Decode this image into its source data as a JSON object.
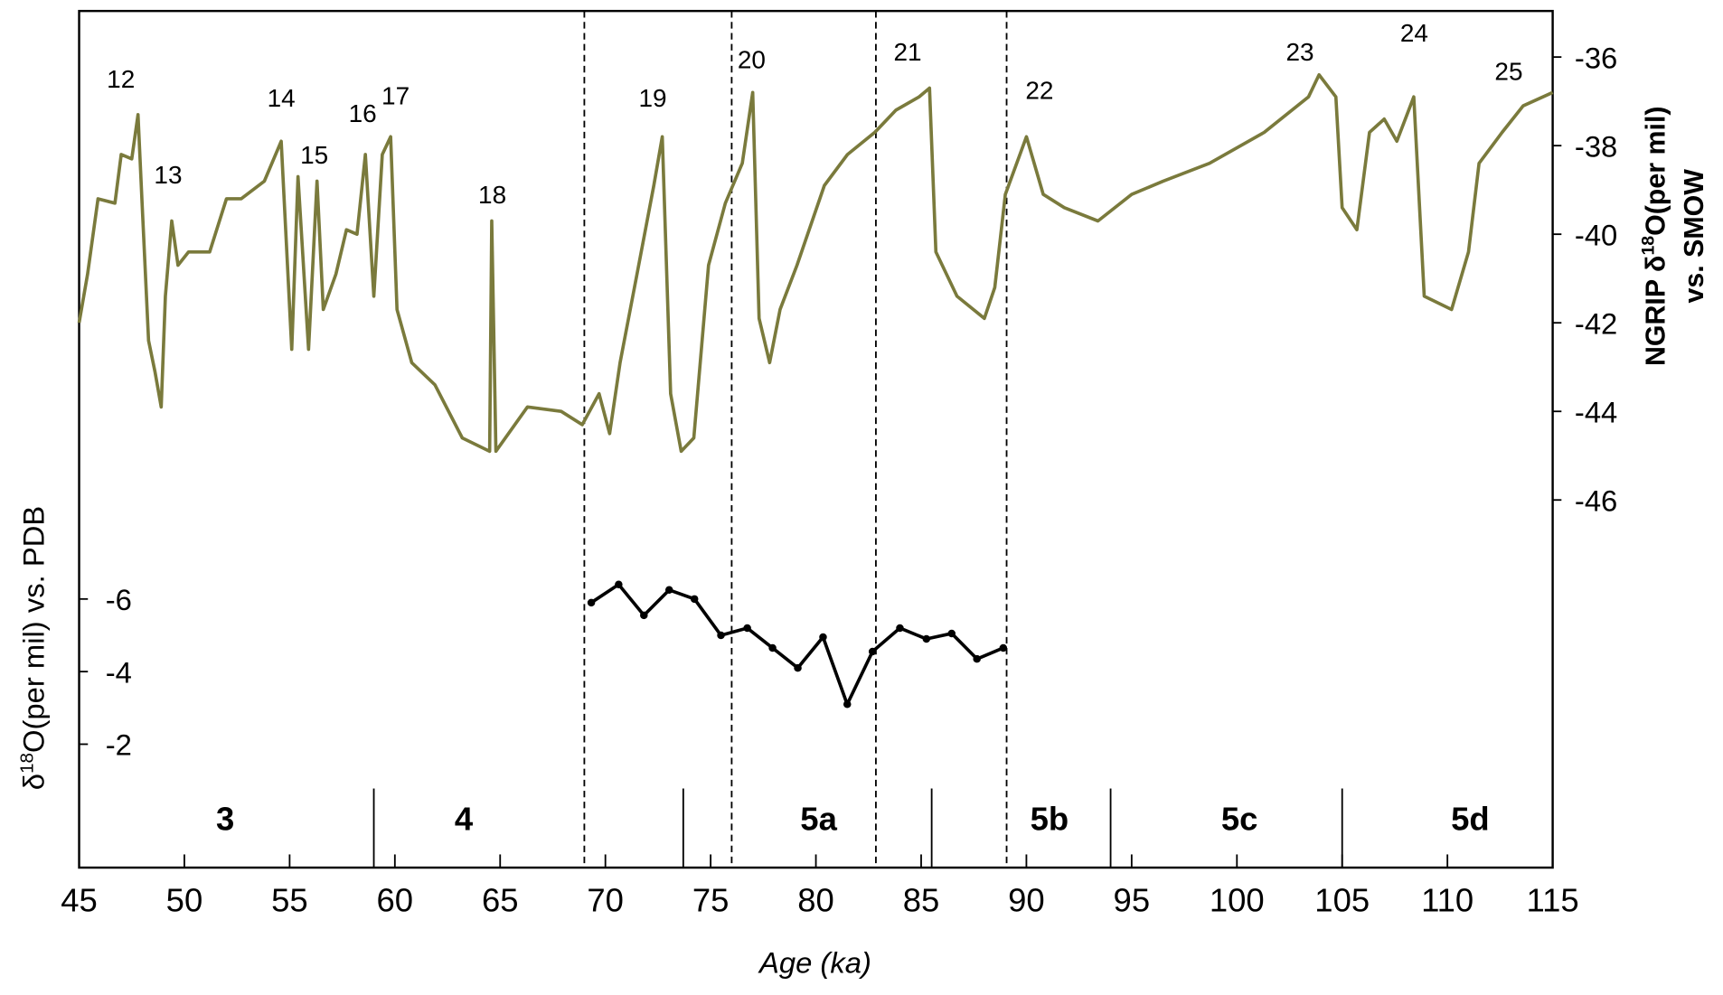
{
  "chart_data": {
    "type": "line",
    "xlabel": "Age (ka)",
    "ylabel_parts": [
      "δ",
      "18",
      "O(per mil) vs. PDB"
    ],
    "y2label_parts": [
      "NGRIP δ",
      "18",
      "O(per mil)"
    ],
    "y2label_line2": "vs. SMOW",
    "xlim": [
      45,
      115
    ],
    "xticks": [
      45,
      50,
      55,
      60,
      65,
      70,
      75,
      80,
      85,
      90,
      95,
      100,
      105,
      110,
      115
    ],
    "ylim": [
      1.4,
      -22.2
    ],
    "yticks": [
      -6,
      -4,
      -2
    ],
    "y2lim": [
      -54.3,
      -34.96
    ],
    "y2ticks": [
      -36,
      -38,
      -40,
      -42,
      -44,
      -46
    ],
    "series": [
      {
        "color": "#7a7a3c",
        "axis": "y2",
        "x": [
          45,
          45.4,
          45.9,
          46.7,
          47,
          47.5,
          47.8,
          48,
          48.3,
          48.6,
          48.9,
          49.1,
          49.4,
          49.7,
          50.2,
          51.2,
          52,
          52.7,
          53.8,
          54.6,
          55.1,
          55.4,
          55.9,
          56.3,
          56.6,
          57.2,
          57.7,
          58.2,
          58.6,
          59,
          59.4,
          59.8,
          60.1,
          60.8,
          61.9,
          63.2,
          64.5,
          64.6,
          64.8,
          66.3,
          67.9,
          68.9,
          69.7,
          70.2,
          70.7,
          71.5,
          72.3,
          72.7,
          73.1,
          73.6,
          74.2,
          74.9,
          75.7,
          76.5,
          77,
          77.3,
          77.8,
          78.3,
          79.1,
          80.4,
          81.5,
          82.8,
          83.8,
          84.9,
          85.4,
          85.7,
          86.7,
          88,
          88.5,
          89,
          90,
          90.8,
          91.8,
          93.4,
          95,
          96.5,
          98.7,
          101.3,
          103.4,
          103.9,
          104.7,
          105,
          105.7,
          106.3,
          107,
          107.6,
          108.4,
          108.9,
          110.2,
          111,
          111.5,
          112.6,
          113.6,
          115
        ],
        "values": [
          -42,
          -40.9,
          -39.2,
          -39.3,
          -38.2,
          -38.3,
          -37.3,
          -39.4,
          -42.4,
          -43.1,
          -43.9,
          -41.4,
          -39.7,
          -40.7,
          -40.4,
          -40.4,
          -39.2,
          -39.2,
          -38.8,
          -37.9,
          -42.6,
          -38.7,
          -42.6,
          -38.8,
          -41.7,
          -40.9,
          -39.9,
          -40,
          -38.2,
          -41.4,
          -38.2,
          -37.8,
          -41.7,
          -42.9,
          -43.4,
          -44.6,
          -44.9,
          -39.7,
          -44.9,
          -43.9,
          -44,
          -44.3,
          -43.6,
          -44.5,
          -42.9,
          -40.9,
          -38.9,
          -37.8,
          -43.6,
          -44.9,
          -44.6,
          -40.7,
          -39.3,
          -38.4,
          -36.8,
          -41.9,
          -42.9,
          -41.7,
          -40.7,
          -38.9,
          -38.2,
          -37.7,
          -37.2,
          -36.9,
          -36.7,
          -40.4,
          -41.4,
          -41.9,
          -41.2,
          -39.1,
          -37.8,
          -39.1,
          -39.4,
          -39.7,
          -39.1,
          -38.8,
          -38.4,
          -37.7,
          -36.9,
          -36.4,
          -36.9,
          -39.4,
          -39.9,
          -37.7,
          -37.4,
          -37.9,
          -36.9,
          -41.4,
          -41.7,
          -40.4,
          -38.4,
          -37.7,
          -37.1,
          -36.8
        ]
      },
      {
        "color": "#000000",
        "markers": true,
        "x": [
          69.33,
          70.63,
          71.83,
          73.03,
          74.23,
          75.49,
          76.74,
          77.94,
          79.14,
          80.34,
          81.49,
          82.69,
          83.99,
          85.25,
          86.45,
          87.65,
          88.9
        ],
        "values": [
          -5.9,
          -6.4,
          -5.55,
          -6.25,
          -6,
          -5,
          -5.2,
          -4.65,
          -4.1,
          -4.95,
          -3.1,
          -4.55,
          -5.2,
          -4.9,
          -5.05,
          -4.35,
          -4.65
        ]
      }
    ],
    "dashed_lines": [
      69,
      76,
      82.85,
      89.06
    ],
    "stage_boundaries": [
      59,
      73.7,
      85.5,
      94,
      105
    ],
    "stage_labels": [
      "3",
      "4",
      "5a",
      "5b",
      "5c",
      "5d"
    ],
    "event_labels": [
      "12",
      "13",
      "14",
      "15",
      "16",
      "17",
      "18",
      "19",
      "20",
      "21",
      "22",
      "23",
      "24",
      "25"
    ]
  }
}
